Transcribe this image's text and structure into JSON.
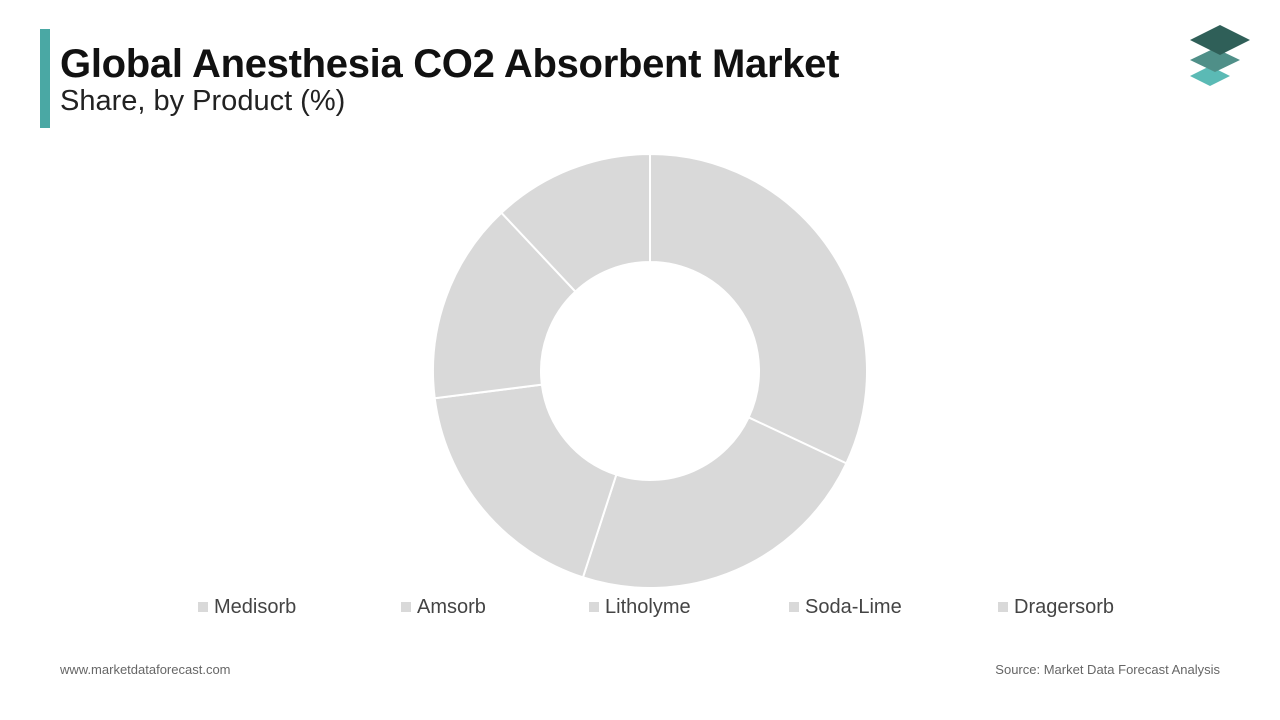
{
  "title": "Global Anesthesia CO2 Absorbent Market",
  "subtitle": "Share, by Product (%)",
  "footer": {
    "website": "www.marketdataforecast.com",
    "source": "Source: Market Data Forecast Analysis"
  },
  "colors": {
    "accent": "#4aa8a4",
    "slice": "#d9d9d9",
    "slice_border": "#ffffff",
    "legend_swatch": "#d9d9d9",
    "logo_dark": "#2f5f58",
    "logo_mid": "#4f8f88",
    "logo_light": "#5bbab5"
  },
  "logo_icon": "stacked-layers-icon",
  "chart_data": {
    "type": "pie",
    "donut": true,
    "categories": [
      "Medisorb",
      "Amsorb",
      "Litholyme",
      "Soda-Lime",
      "Dragersorb"
    ],
    "values": [
      32,
      23,
      18,
      15,
      12
    ],
    "legend_position": "bottom"
  }
}
